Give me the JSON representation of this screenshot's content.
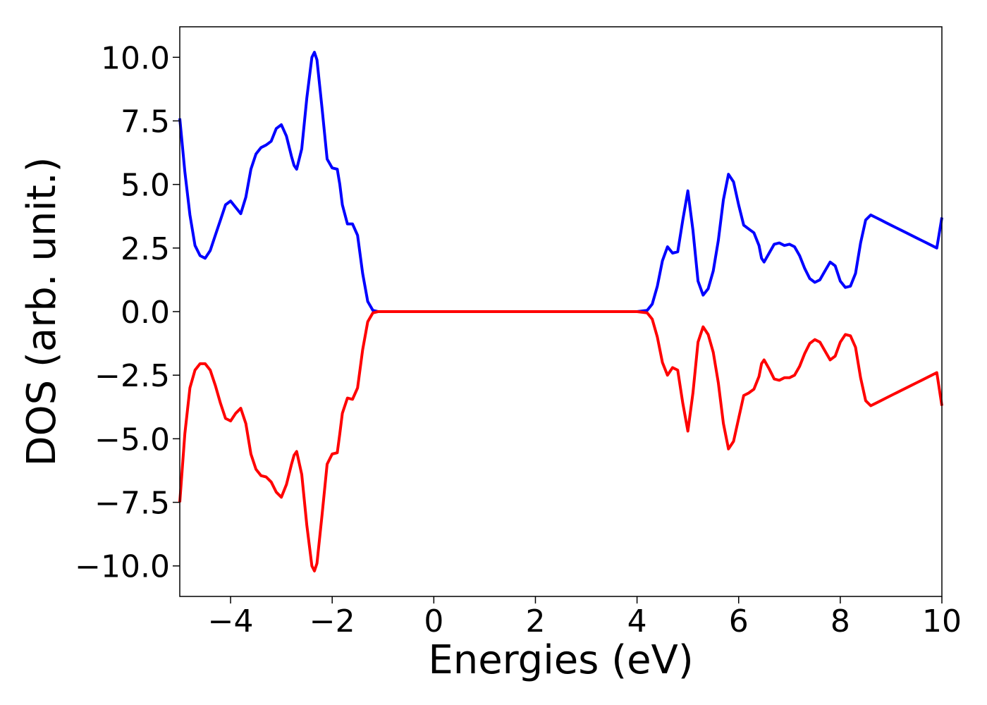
{
  "chart_data": {
    "type": "line",
    "title": "",
    "xlabel": "Energies (eV)",
    "ylabel": "DOS (arb. unit.)",
    "xlim": [
      -5,
      10
    ],
    "ylim": [
      -11.2,
      11.2
    ],
    "grid": false,
    "legend": "none",
    "x_ticks": [
      -4,
      -2,
      0,
      2,
      4,
      6,
      8,
      10
    ],
    "x_tick_labels": [
      "−4",
      "−2",
      "0",
      "2",
      "4",
      "6",
      "8",
      "10"
    ],
    "y_ticks": [
      10,
      7.5,
      5,
      2.5,
      0,
      -2.5,
      -5,
      -7.5,
      -10
    ],
    "y_tick_labels": [
      "10.0",
      "7.5",
      "5.0",
      "2.5",
      "0.0",
      "−2.5",
      "−5.0",
      "−7.5",
      "−10.0"
    ],
    "series": [
      {
        "color": "#0000ff",
        "x": [
          -5.0,
          -4.9,
          -4.8,
          -4.7,
          -4.6,
          -4.5,
          -4.4,
          -4.3,
          -4.2,
          -4.1,
          -4.0,
          -3.9,
          -3.8,
          -3.7,
          -3.6,
          -3.5,
          -3.4,
          -3.3,
          -3.2,
          -3.1,
          -3.0,
          -2.9,
          -2.8,
          -2.75,
          -2.7,
          -2.6,
          -2.5,
          -2.4,
          -2.35,
          -2.3,
          -2.2,
          -2.1,
          -2.0,
          -1.9,
          -1.85,
          -1.8,
          -1.7,
          -1.6,
          -1.5,
          -1.4,
          -1.3,
          -1.2,
          -1.1,
          -1.0,
          -0.95,
          -0.9,
          -0.8,
          -0.7,
          -0.6,
          -0.5,
          -0.4,
          0.0,
          1.0,
          2.0,
          3.0,
          4.0,
          4.2,
          4.3,
          4.4,
          4.5,
          4.6,
          4.7,
          4.8,
          4.9,
          5.0,
          5.1,
          5.2,
          5.3,
          5.4,
          5.5,
          5.6,
          5.7,
          5.8,
          5.9,
          6.0,
          6.1,
          6.2,
          6.3,
          6.4,
          6.45,
          6.5,
          6.6,
          6.7,
          6.8,
          6.9,
          7.0,
          7.1,
          7.2,
          7.3,
          7.4,
          7.5,
          7.6,
          7.7,
          7.8,
          7.9,
          8.0,
          8.1,
          8.2,
          8.3,
          8.4,
          8.5,
          8.6,
          8.7,
          8.8,
          8.9,
          9.0,
          9.1,
          9.2,
          9.3,
          9.4,
          9.5,
          9.6,
          9.7,
          9.8,
          9.9,
          10.0
        ],
        "y": [
          7.6,
          5.5,
          3.8,
          2.6,
          2.2,
          2.1,
          2.4,
          3.0,
          3.6,
          4.2,
          4.35,
          4.1,
          3.85,
          4.5,
          5.6,
          6.2,
          6.45,
          6.55,
          6.7,
          7.2,
          7.35,
          6.9,
          6.1,
          5.75,
          5.6,
          6.4,
          8.4,
          10.0,
          10.2,
          9.9,
          8.0,
          6.0,
          5.65,
          5.6,
          5.0,
          4.2,
          3.45,
          3.45,
          3.0,
          1.5,
          0.4,
          0.05,
          0.0,
          0.0,
          0.0,
          0.0,
          0.0,
          0.0,
          0.0,
          0.0,
          0.0,
          0.0,
          0.0,
          0.0,
          0.0,
          0.0,
          0.05,
          0.3,
          1.0,
          2.0,
          2.55,
          2.3,
          2.35,
          3.6,
          4.75,
          3.2,
          1.2,
          0.65,
          0.9,
          1.6,
          2.8,
          4.4,
          5.4,
          5.1,
          4.2,
          3.4,
          3.25,
          3.1,
          2.6,
          2.1,
          1.95,
          2.3,
          2.65,
          2.7,
          2.6,
          2.65,
          2.55,
          2.2,
          1.7,
          1.3,
          1.15,
          1.25,
          1.6,
          1.95,
          1.8,
          1.2,
          0.95,
          1.0,
          1.5,
          2.7,
          3.6,
          3.8,
          3.7,
          3.6,
          3.5,
          3.4,
          3.3,
          3.2,
          3.1,
          3.0,
          2.9,
          2.8,
          2.7,
          2.6,
          2.5,
          3.7
        ]
      },
      {
        "color": "#ff0000",
        "x": [
          -5.0,
          -4.9,
          -4.8,
          -4.7,
          -4.6,
          -4.5,
          -4.4,
          -4.3,
          -4.2,
          -4.1,
          -4.0,
          -3.9,
          -3.8,
          -3.7,
          -3.6,
          -3.5,
          -3.4,
          -3.3,
          -3.2,
          -3.1,
          -3.0,
          -2.9,
          -2.8,
          -2.75,
          -2.7,
          -2.6,
          -2.5,
          -2.4,
          -2.35,
          -2.3,
          -2.2,
          -2.1,
          -2.0,
          -1.9,
          -1.85,
          -1.8,
          -1.7,
          -1.6,
          -1.5,
          -1.4,
          -1.3,
          -1.2,
          -1.1,
          -1.0,
          -0.95,
          -0.9,
          -0.8,
          -0.7,
          -0.6,
          -0.5,
          -0.4,
          0.0,
          1.0,
          2.0,
          3.0,
          4.0,
          4.2,
          4.3,
          4.4,
          4.5,
          4.6,
          4.7,
          4.8,
          4.9,
          5.0,
          5.1,
          5.2,
          5.3,
          5.4,
          5.5,
          5.6,
          5.7,
          5.8,
          5.9,
          6.0,
          6.1,
          6.2,
          6.3,
          6.4,
          6.45,
          6.5,
          6.6,
          6.7,
          6.8,
          6.9,
          7.0,
          7.1,
          7.2,
          7.3,
          7.4,
          7.5,
          7.6,
          7.7,
          7.8,
          7.9,
          8.0,
          8.1,
          8.2,
          8.3,
          8.4,
          8.5,
          8.6,
          8.7,
          8.8,
          8.9,
          9.0,
          9.1,
          9.2,
          9.3,
          9.4,
          9.5,
          9.6,
          9.7,
          9.8,
          9.9,
          10.0
        ],
        "y": [
          -7.5,
          -4.8,
          -3.0,
          -2.3,
          -2.05,
          -2.05,
          -2.3,
          -2.9,
          -3.6,
          -4.2,
          -4.3,
          -4.0,
          -3.8,
          -4.4,
          -5.6,
          -6.2,
          -6.45,
          -6.5,
          -6.7,
          -7.1,
          -7.3,
          -6.8,
          -6.0,
          -5.65,
          -5.5,
          -6.4,
          -8.4,
          -10.0,
          -10.2,
          -9.9,
          -8.0,
          -6.0,
          -5.6,
          -5.55,
          -4.8,
          -4.0,
          -3.4,
          -3.45,
          -3.0,
          -1.5,
          -0.4,
          -0.05,
          0.0,
          0.0,
          0.0,
          0.0,
          0.0,
          0.0,
          0.0,
          0.0,
          0.0,
          0.0,
          0.0,
          0.0,
          0.0,
          0.0,
          -0.05,
          -0.3,
          -1.0,
          -2.0,
          -2.5,
          -2.2,
          -2.3,
          -3.6,
          -4.7,
          -3.2,
          -1.2,
          -0.6,
          -0.9,
          -1.6,
          -2.8,
          -4.4,
          -5.4,
          -5.1,
          -4.2,
          -3.3,
          -3.2,
          -3.05,
          -2.55,
          -2.05,
          -1.9,
          -2.25,
          -2.65,
          -2.7,
          -2.6,
          -2.6,
          -2.5,
          -2.15,
          -1.65,
          -1.25,
          -1.1,
          -1.2,
          -1.55,
          -1.9,
          -1.75,
          -1.2,
          -0.9,
          -0.95,
          -1.4,
          -2.6,
          -3.5,
          -3.7,
          -3.6,
          -3.5,
          -3.4,
          -3.3,
          -3.2,
          -3.1,
          -3.0,
          -2.9,
          -2.8,
          -2.7,
          -2.6,
          -2.5,
          -2.4,
          -3.7
        ]
      }
    ]
  }
}
